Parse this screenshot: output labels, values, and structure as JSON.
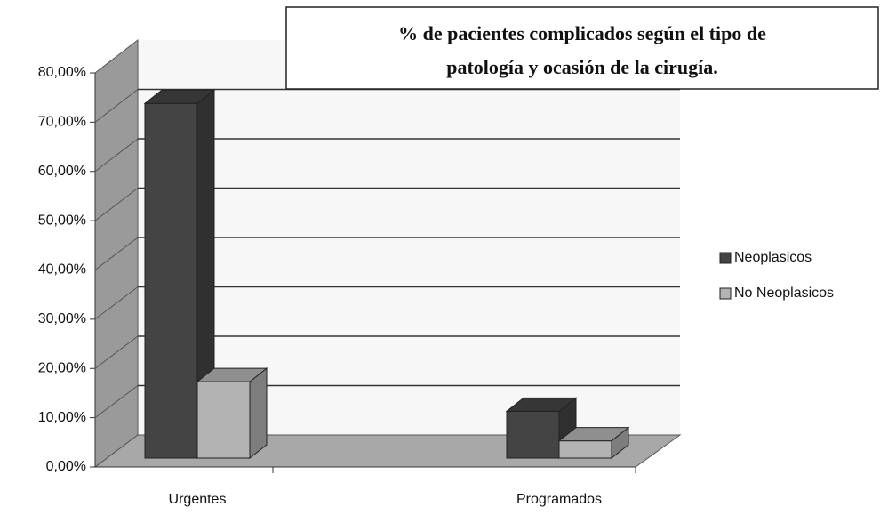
{
  "chart_data": {
    "type": "bar3d",
    "title": [
      "% de  pacientes complicados según el tipo de",
      "patología y ocasión de la cirugía."
    ],
    "categories": [
      "Urgentes",
      "Programados"
    ],
    "series": [
      {
        "name": "Neoplasicos",
        "color": "#444444",
        "values": [
          72,
          9.5
        ]
      },
      {
        "name": "No Neoplasicos",
        "color": "#b3b3b3",
        "values": [
          15.5,
          3.5
        ]
      }
    ],
    "ylim": [
      0,
      80
    ],
    "yticks": [
      {
        "value": 0,
        "label": "0,00%"
      },
      {
        "value": 10,
        "label": "10,00%"
      },
      {
        "value": 20,
        "label": "20,00%"
      },
      {
        "value": 30,
        "label": "30,00%"
      },
      {
        "value": 40,
        "label": "40,00%"
      },
      {
        "value": 50,
        "label": "50,00%"
      },
      {
        "value": 60,
        "label": "60,00%"
      },
      {
        "value": 70,
        "label": "70,00%"
      },
      {
        "value": 80,
        "label": "80,00%"
      }
    ],
    "grid": true,
    "legend": "right"
  }
}
